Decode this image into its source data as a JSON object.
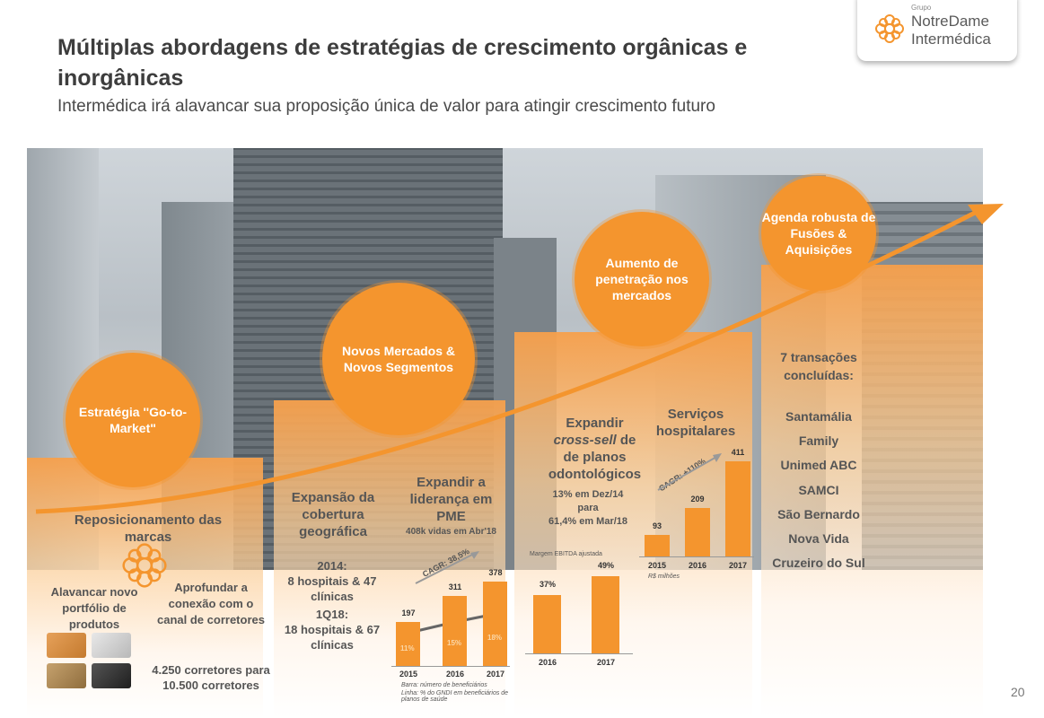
{
  "header": {
    "title": "Múltiplas abordagens de estratégias de crescimento orgânicas e inorgânicas",
    "subtitle": "Intermédica irá alavancar sua proposição única de valor para atingir crescimento futuro"
  },
  "logo": {
    "grupo": "Grupo",
    "line1": "NotreDame",
    "line2": "Intermédica"
  },
  "circles": {
    "c1": "Estratégia ''Go-to-Market\"",
    "c2": "Novos Mercados & Novos Segmentos",
    "c3": "Aumento de penetração nos mercados",
    "c4": "Agenda robusta de Fusões & Aquisições"
  },
  "col1": {
    "heading": "Reposicionamento das marcas",
    "left_text": "Alavancar novo portfólio de produtos",
    "right_text": "Aprofundar a conexão com o canal de corretores",
    "brokers": "4.250 corretores para 10.500 corretores"
  },
  "col2": {
    "heading": "Expansão da cobertura geográfica",
    "y2014": "2014:",
    "t2014": "8 hospitais & 47 clínicas",
    "y1q18": "1Q18:",
    "t1q18": "18 hospitais & 67 clínicas",
    "chart_heading": "Expandir a liderança em PME",
    "chart_sub": "408k vidas em Abr'18",
    "cagr": "CAGR: 38,5%",
    "note1": "Barra: número de beneficiários",
    "note2": "Linha: % do GNDI em beneficiários de planos de saúde"
  },
  "col3": {
    "heading_a": "Expandir",
    "heading_b": "cross-sell",
    "heading_c": "de planos odontológicos",
    "stat1": "13% em Dez/14",
    "stat2": "para",
    "stat3": "61,4% em Mar/18",
    "margin_label": "Margem EBITDA ajustada",
    "hosp_heading": "Serviços hospitalares",
    "cagr": "CAGR: +110%",
    "unit": "R$ milhões"
  },
  "col4": {
    "heading": "7 transações concluídas:",
    "transactions": [
      "Santamália",
      "Family",
      "Unimed ABC",
      "SAMCI",
      "São Bernardo",
      "Nova Vida",
      "Cruzeiro do Sul"
    ]
  },
  "page_number": "20",
  "chart_data": [
    {
      "type": "bar",
      "title": "Expandir a liderança em PME",
      "categories": [
        "2015",
        "2016",
        "2017"
      ],
      "series": [
        {
          "name": "Barra: número de beneficiários",
          "values": [
            197,
            311,
            378
          ]
        },
        {
          "name": "Linha: % do GNDI em beneficiários de planos de saúde",
          "values": [
            "11%",
            "15%",
            "18%"
          ]
        }
      ],
      "annotation": "CAGR: 38,5%"
    },
    {
      "type": "bar",
      "title": "Margem EBITDA ajustada",
      "categories": [
        "2016",
        "2017"
      ],
      "values": [
        "37%",
        "49%"
      ]
    },
    {
      "type": "bar",
      "title": "Serviços hospitalares",
      "categories": [
        "2015",
        "2016",
        "2017"
      ],
      "values": [
        93,
        209,
        411
      ],
      "ylabel": "R$ milhões",
      "annotation": "CAGR: +110%"
    }
  ],
  "colors": {
    "accent": "#f4952e",
    "text": "#4a4a4a"
  }
}
